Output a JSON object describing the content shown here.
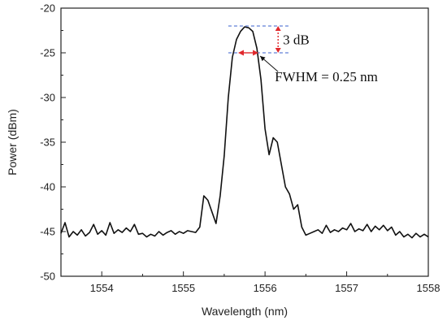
{
  "chart_data": {
    "type": "line",
    "xlabel": "Wavelength (nm)",
    "ylabel": "Power (dBm)",
    "xlim": [
      1553.5,
      1558
    ],
    "ylim": [
      -50,
      -20
    ],
    "xticks": [
      1554,
      1555,
      1556,
      1557,
      1558
    ],
    "yticks": [
      -50,
      -45,
      -40,
      -35,
      -30,
      -25,
      -20
    ],
    "grid": false,
    "legend": "none",
    "line_color": "#111111",
    "annotation_color_dashed": "#3a5fcd",
    "annotation_color_arrows": "#e0282c",
    "annotations": {
      "peak_level_dbm": -22,
      "half_level_dbm": -25,
      "fwhm_left_nm": 1555.67,
      "fwhm_right_nm": 1555.92,
      "dashed_x_range": [
        1555.55,
        1556.3
      ],
      "db_label": "3 dB",
      "fwhm_label": "FWHM = 0.25 nm"
    },
    "series": [
      {
        "x": [
          1553.5,
          1553.55,
          1553.6,
          1553.65,
          1553.7,
          1553.75,
          1553.8,
          1553.85,
          1553.9,
          1553.95,
          1554.0,
          1554.05,
          1554.1,
          1554.15,
          1554.2,
          1554.25,
          1554.3,
          1554.35,
          1554.4,
          1554.45,
          1554.5,
          1554.55,
          1554.6,
          1554.65,
          1554.7,
          1554.75,
          1554.8,
          1554.85,
          1554.9,
          1554.95,
          1555.0,
          1555.05,
          1555.1,
          1555.15,
          1555.2,
          1555.25,
          1555.3,
          1555.35,
          1555.4,
          1555.45,
          1555.5,
          1555.55,
          1555.6,
          1555.65,
          1555.7,
          1555.75,
          1555.8,
          1555.85,
          1555.9,
          1555.95,
          1556.0,
          1556.05,
          1556.1,
          1556.15,
          1556.2,
          1556.25,
          1556.3,
          1556.35,
          1556.4,
          1556.45,
          1556.5,
          1556.55,
          1556.6,
          1556.65,
          1556.7,
          1556.75,
          1556.8,
          1556.85,
          1556.9,
          1556.95,
          1557.0,
          1557.05,
          1557.1,
          1557.15,
          1557.2,
          1557.25,
          1557.3,
          1557.35,
          1557.4,
          1557.45,
          1557.5,
          1557.55,
          1557.6,
          1557.65,
          1557.7,
          1557.75,
          1557.8,
          1557.85,
          1557.9,
          1557.95,
          1558.0
        ],
        "y": [
          -45.2,
          -44.0,
          -45.6,
          -45.0,
          -45.4,
          -44.8,
          -45.5,
          -45.1,
          -44.2,
          -45.3,
          -44.9,
          -45.4,
          -44.0,
          -45.2,
          -44.8,
          -45.1,
          -44.6,
          -45.0,
          -44.2,
          -45.3,
          -45.2,
          -45.6,
          -45.3,
          -45.5,
          -45.0,
          -45.4,
          -45.1,
          -44.9,
          -45.3,
          -45.0,
          -45.2,
          -44.9,
          -45.0,
          -45.1,
          -44.5,
          -41.0,
          -41.5,
          -42.8,
          -44.1,
          -41.0,
          -36.5,
          -30.0,
          -25.5,
          -23.5,
          -22.6,
          -22.1,
          -22.2,
          -22.6,
          -24.5,
          -28.0,
          -33.5,
          -36.4,
          -34.5,
          -35.0,
          -37.5,
          -40.0,
          -40.8,
          -42.5,
          -42.0,
          -44.5,
          -45.4,
          -45.2,
          -45.0,
          -44.8,
          -45.2,
          -44.3,
          -45.1,
          -44.8,
          -45.0,
          -44.6,
          -44.8,
          -44.1,
          -45.0,
          -44.7,
          -44.9,
          -44.2,
          -45.0,
          -44.4,
          -44.8,
          -44.3,
          -44.9,
          -44.5,
          -45.4,
          -45.0,
          -45.6,
          -45.3,
          -45.7,
          -45.2,
          -45.6,
          -45.3,
          -45.6
        ]
      }
    ]
  }
}
